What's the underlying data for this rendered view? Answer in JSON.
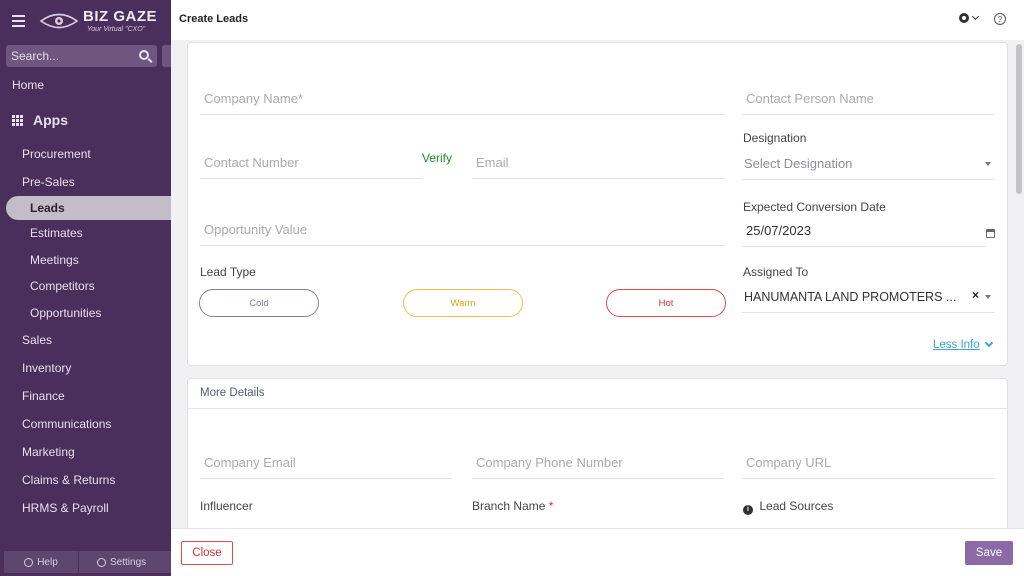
{
  "sidebar": {
    "logo": {
      "main": "BIZ GAZE",
      "sub": "Your Virtual \"CXO\""
    },
    "search_placeholder": "Search...",
    "home": "Home",
    "apps": "Apps",
    "items": [
      {
        "label": "Procurement",
        "level": 1
      },
      {
        "label": "Pre-Sales",
        "level": 1
      },
      {
        "label": "Leads",
        "level": 2,
        "active": true
      },
      {
        "label": "Estimates",
        "level": 2
      },
      {
        "label": "Meetings",
        "level": 2
      },
      {
        "label": "Competitors",
        "level": 2
      },
      {
        "label": "Opportunities",
        "level": 2
      },
      {
        "label": "Sales",
        "level": 1
      },
      {
        "label": "Inventory",
        "level": 1
      },
      {
        "label": "Finance",
        "level": 1
      },
      {
        "label": "Communications",
        "level": 1
      },
      {
        "label": "Marketing",
        "level": 1
      },
      {
        "label": "Claims & Returns",
        "level": 1
      },
      {
        "label": "HRMS & Payroll",
        "level": 1
      }
    ],
    "footer": {
      "help": "Help",
      "settings": "Settings"
    }
  },
  "header": {
    "title": "Create Leads"
  },
  "form": {
    "company_name_placeholder": "Company Name*",
    "contact_person_placeholder": "Contact Person Name",
    "contact_number_placeholder": "Contact Number",
    "verify_label": "Verify",
    "email_placeholder": "Email",
    "designation_label": "Designation",
    "designation_placeholder": "Select Designation",
    "opportunity_value_placeholder": "Opportunity Value",
    "expected_conversion_label": "Expected Conversion Date",
    "expected_conversion_value": "25/07/2023",
    "lead_type_label": "Lead Type",
    "lead_types": [
      "Cold",
      "Warm",
      "Hot"
    ],
    "assigned_to_label": "Assigned To",
    "assigned_to_value": "HANUMANTA LAND PROMOTERS ...",
    "clear_symbol": "×",
    "less_info": "Less Info"
  },
  "more_details": {
    "title": "More Details",
    "company_email_placeholder": "Company Email",
    "company_phone_placeholder": "Company Phone Number",
    "company_url_placeholder": "Company URL",
    "influencer_label": "Influencer",
    "branch_name_label": "Branch Name",
    "required_mark": "*",
    "lead_sources_label": "Lead Sources",
    "info_symbol": "i"
  },
  "footer": {
    "close": "Close",
    "save": "Save"
  },
  "colors": {
    "sidebar_bg": "#4a2e5b",
    "accent": "#8c6aa8",
    "danger": "#d63030",
    "link": "#3aa3d8",
    "verify": "#1e8f2e"
  }
}
